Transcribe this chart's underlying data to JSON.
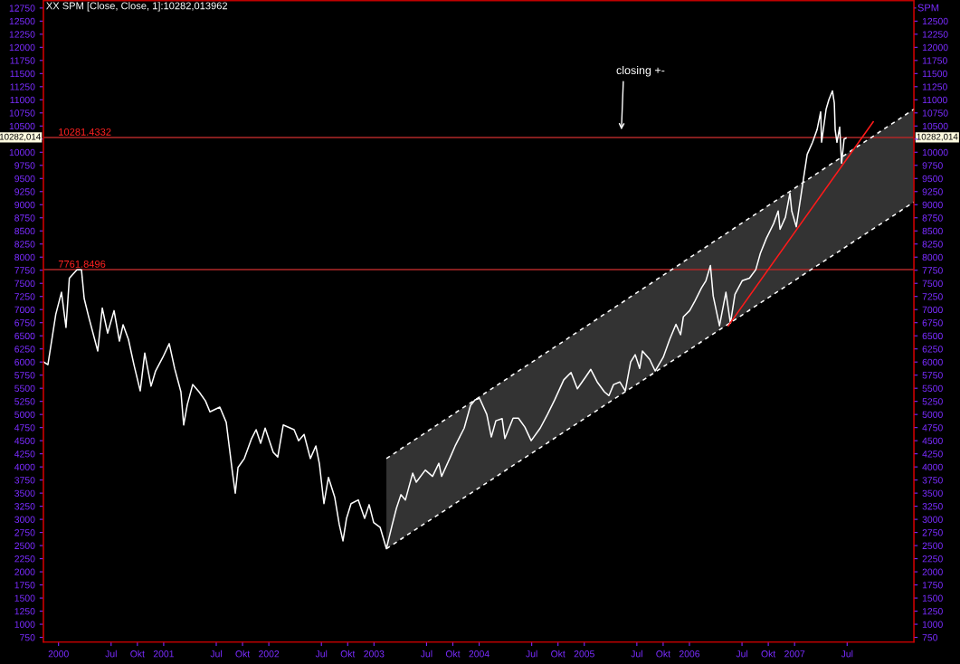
{
  "chart_data": {
    "type": "line",
    "title": "XX SPM [Close, Close, 1]:10282,013962",
    "y2label": "SPM",
    "annotations": [
      "closing +-",
      "10282,014"
    ],
    "xlim": [
      1999.856,
      2008.135
    ],
    "ylim": [
      660,
      12890
    ],
    "y2lim": [
      660,
      12890
    ],
    "xticks": [
      {
        "value": 2000,
        "label": "2000"
      },
      {
        "value": 2000.5,
        "label": "Jul"
      },
      {
        "value": 2000.75,
        "label": "Okt"
      },
      {
        "value": 2001,
        "label": "2001"
      },
      {
        "value": 2001.5,
        "label": "Jul"
      },
      {
        "value": 2001.75,
        "label": "Okt"
      },
      {
        "value": 2002,
        "label": "2002"
      },
      {
        "value": 2002.5,
        "label": "Jul"
      },
      {
        "value": 2002.75,
        "label": "Okt"
      },
      {
        "value": 2003,
        "label": "2003"
      },
      {
        "value": 2003.5,
        "label": "Jul"
      },
      {
        "value": 2003.75,
        "label": "Okt"
      },
      {
        "value": 2004,
        "label": "2004"
      },
      {
        "value": 2004.5,
        "label": "Jul"
      },
      {
        "value": 2004.75,
        "label": "Okt"
      },
      {
        "value": 2005,
        "label": "2005"
      },
      {
        "value": 2005.5,
        "label": "Jul"
      },
      {
        "value": 2005.75,
        "label": "Okt"
      },
      {
        "value": 2006,
        "label": "2006"
      },
      {
        "value": 2006.5,
        "label": "Jul"
      },
      {
        "value": 2006.75,
        "label": "Okt"
      },
      {
        "value": 2007,
        "label": "2007"
      },
      {
        "value": 2007.5,
        "label": "Jul"
      }
    ],
    "yticks": [
      750,
      1000,
      1250,
      1500,
      1750,
      2000,
      2250,
      2500,
      2750,
      3000,
      3250,
      3500,
      3750,
      4000,
      4250,
      4500,
      4750,
      5000,
      5250,
      5500,
      5750,
      6000,
      6250,
      6500,
      6750,
      7000,
      7250,
      7500,
      7750,
      8000,
      8250,
      8500,
      8750,
      9000,
      9250,
      9500,
      9750,
      10000,
      {
        "value": 10250,
        "label": null
      },
      10500,
      10750,
      11000,
      11250,
      11500,
      11750,
      12000,
      12250,
      12500,
      12750
    ],
    "y2ticks": [
      750,
      1000,
      1250,
      1500,
      1750,
      2000,
      2250,
      2500,
      2750,
      3000,
      3250,
      3500,
      3750,
      4000,
      4250,
      4500,
      4750,
      5000,
      5250,
      5500,
      5750,
      6000,
      6250,
      6500,
      6750,
      7000,
      7250,
      7500,
      7750,
      8000,
      8250,
      8500,
      8750,
      9000,
      9250,
      9500,
      9750,
      10000,
      {
        "value": 10250,
        "label": null
      },
      10500,
      10750,
      11000,
      11250,
      11500,
      11750,
      12000,
      12250,
      12500,
      {
        "value": 12750,
        "label": null
      }
    ],
    "ref_lines": [
      {
        "axis": "y",
        "value": 10281.4332,
        "label": "10281.4332",
        "color": "#b02828"
      },
      {
        "axis": "y",
        "value": 7761.8496,
        "label": "7761.8496",
        "color": "#b02828"
      }
    ],
    "grid": false,
    "legend": false,
    "marker": "none",
    "series": [
      {
        "type": "area",
        "color": "#333333",
        "x": [
          2003.118,
          2008.135
        ],
        "values": [
          null,
          null
        ],
        "lower": [
          2440,
          9050
        ],
        "upper": [
          4160,
          10820
        ]
      },
      {
        "type": "line",
        "color": "#ffffff",
        "line_style": "dashed",
        "x": [
          2003.118,
          2008.135
        ],
        "values": [
          4160,
          10820
        ]
      },
      {
        "type": "line",
        "color": "#ffffff",
        "line_style": "dashed",
        "x": [
          2003.118,
          2008.135
        ],
        "values": [
          2440,
          9050
        ]
      },
      {
        "color": "#ffffff",
        "line_style": "solid",
        "x": [
          1999.859,
          1999.899,
          1999.974,
          2000.028,
          2000.071,
          2000.103,
          2000.175,
          2000.218,
          2000.244,
          2000.287,
          2000.373,
          2000.416,
          2000.467,
          2000.528,
          2000.579,
          2000.614,
          2000.665,
          2000.717,
          2000.777,
          2000.82,
          2000.88,
          2000.923,
          2000.992,
          2001.053,
          2001.104,
          2001.164,
          2001.19,
          2001.225,
          2001.276,
          2001.337,
          2001.397,
          2001.44,
          2001.534,
          2001.595,
          2001.655,
          2001.681,
          2001.707,
          2001.767,
          2001.836,
          2001.879,
          2001.922,
          2001.965,
          2002.042,
          2002.085,
          2002.137,
          2002.24,
          2002.283,
          2002.335,
          2002.395,
          2002.447,
          2002.481,
          2002.524,
          2002.567,
          2002.627,
          2002.67,
          2002.705,
          2002.739,
          2002.782,
          2002.851,
          2002.911,
          2002.954,
          2002.997,
          2003.058,
          2003.118,
          2003.17,
          2003.213,
          2003.256,
          2003.299,
          2003.368,
          2003.402,
          2003.488,
          2003.557,
          2003.617,
          2003.643,
          2003.72,
          2003.772,
          2003.858,
          2003.918,
          2003.961,
          2004.004,
          2004.073,
          2004.116,
          2004.159,
          2004.219,
          2004.245,
          2004.323,
          2004.374,
          2004.435,
          2004.495,
          2004.581,
          2004.65,
          2004.719,
          2004.805,
          2004.874,
          2004.934,
          2005.011,
          2005.062,
          2005.123,
          2005.192,
          2005.235,
          2005.278,
          2005.338,
          2005.39,
          2005.441,
          2005.484,
          2005.527,
          2005.553,
          2005.622,
          2005.674,
          2005.751,
          2005.812,
          2005.872,
          2005.916,
          2005.942,
          2006.002,
          2006.054,
          2006.114,
          2006.157,
          2006.2,
          2006.226,
          2006.286,
          2006.347,
          2006.39,
          2006.433,
          2006.502,
          2006.571,
          2006.631,
          2006.674,
          2006.732,
          2006.801,
          2006.844,
          2006.862,
          2006.913,
          2006.956,
          2006.973,
          2007.016,
          2007.059,
          2007.085,
          2007.12,
          2007.171,
          2007.214,
          2007.248,
          2007.257,
          2007.3,
          2007.326,
          2007.36,
          2007.378,
          2007.386,
          2007.403,
          2007.429,
          2007.447,
          2007.471,
          2007.489
        ],
        "values": [
          6000,
          5950,
          6910,
          7330,
          6660,
          7600,
          7760,
          7760,
          7210,
          6860,
          6210,
          7030,
          6550,
          6980,
          6400,
          6710,
          6430,
          5950,
          5450,
          6170,
          5540,
          5830,
          6090,
          6350,
          5880,
          5430,
          4800,
          5190,
          5570,
          5430,
          5260,
          5050,
          5140,
          4850,
          3880,
          3500,
          3990,
          4160,
          4540,
          4710,
          4450,
          4740,
          4280,
          4190,
          4800,
          4710,
          4500,
          4620,
          4160,
          4400,
          4060,
          3300,
          3800,
          3420,
          2900,
          2590,
          3020,
          3300,
          3370,
          3020,
          3280,
          2940,
          2850,
          2440,
          2870,
          3210,
          3470,
          3370,
          3880,
          3710,
          3940,
          3820,
          4070,
          3820,
          4160,
          4400,
          4740,
          5170,
          5280,
          5310,
          5000,
          4570,
          4880,
          4920,
          4540,
          4930,
          4930,
          4760,
          4500,
          4740,
          5000,
          5280,
          5660,
          5800,
          5490,
          5710,
          5860,
          5620,
          5430,
          5360,
          5570,
          5620,
          5450,
          6000,
          6140,
          5880,
          6210,
          6050,
          5830,
          6090,
          6430,
          6720,
          6520,
          6860,
          6980,
          7170,
          7410,
          7550,
          7840,
          7260,
          6690,
          7330,
          6740,
          7290,
          7550,
          7600,
          7760,
          8070,
          8360,
          8640,
          8880,
          8530,
          8760,
          9220,
          8880,
          8580,
          9150,
          9500,
          9960,
          10190,
          10430,
          10770,
          10190,
          10820,
          11000,
          11170,
          10940,
          10430,
          10190,
          10480,
          9790,
          10250,
          10270
        ]
      },
      {
        "type": "line",
        "color": "#ff1a1a",
        "line_style": "solid",
        "x": [
          2006.369,
          2007.748
        ],
        "values": [
          6690,
          10580
        ]
      }
    ]
  }
}
